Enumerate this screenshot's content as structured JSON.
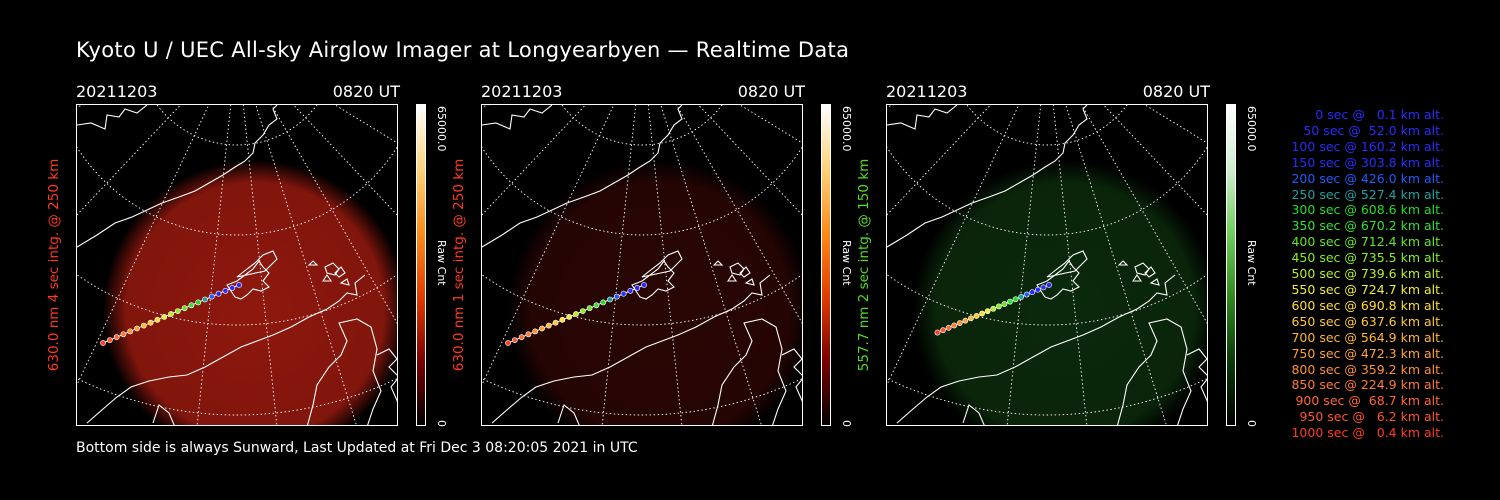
{
  "title": "Kyoto U / UEC All-sky Airglow Imager at Longyearbyen — Realtime Data",
  "footer": "Bottom side is always Sunward, Last Updated at Fri Dec  3 08:20:05 2021 in UTC",
  "panels": [
    {
      "date": "20211203",
      "time": "0820 UT",
      "ylabel": "630.0 nm 4 sec intg. @ 250 km",
      "label_color": "#ff3b1f",
      "colorbar_max": "65000.0",
      "colorbar_name": "Raw Cnt",
      "colorbar_min": "0",
      "colorbar_colors": [
        "#ffffff",
        "#ffd27a",
        "#ff8a1a",
        "#e23b00",
        "#7a0000",
        "#000000"
      ],
      "glow_color": "#a81c10",
      "glow_intensity": 0.85,
      "trajectory_scale": 1.0
    },
    {
      "date": "20211203",
      "time": "0820 UT",
      "ylabel": "630.0 nm 1 sec intg. @ 250 km",
      "label_color": "#ff3b1f",
      "colorbar_max": "65000.0",
      "colorbar_name": "Raw Cnt",
      "colorbar_min": "0",
      "colorbar_colors": [
        "#ffffff",
        "#ffd27a",
        "#ff8a1a",
        "#e23b00",
        "#7a0000",
        "#000000"
      ],
      "glow_color": "#3a0806",
      "glow_intensity": 0.7,
      "trajectory_scale": 1.0
    },
    {
      "date": "20211203",
      "time": "0820 UT",
      "ylabel": "557.7 nm 2 sec intg. @ 150 km",
      "label_color": "#55dd22",
      "colorbar_max": "65000.0",
      "colorbar_name": "Raw Cnt",
      "colorbar_min": "0",
      "colorbar_colors": [
        "#ffffff",
        "#cfeecf",
        "#6fcf5a",
        "#2f8a1e",
        "#0b3a08",
        "#000000"
      ],
      "glow_color": "#0f3a10",
      "glow_intensity": 0.7,
      "trajectory_scale": 0.82
    }
  ],
  "legend": [
    {
      "text": "0 sec @   0.1 km alt.",
      "color": "#2a2aff"
    },
    {
      "text": "50 sec @  52.0 km alt.",
      "color": "#2a2aff"
    },
    {
      "text": "100 sec @ 160.2 km alt.",
      "color": "#2a2aff"
    },
    {
      "text": "150 sec @ 303.8 km alt.",
      "color": "#2a2aff"
    },
    {
      "text": "200 sec @ 426.0 km alt.",
      "color": "#1e5cff"
    },
    {
      "text": "250 sec @ 527.4 km alt.",
      "color": "#1fa0a0"
    },
    {
      "text": "300 sec @ 608.6 km alt.",
      "color": "#22dd22"
    },
    {
      "text": "350 sec @ 670.2 km alt.",
      "color": "#33e033"
    },
    {
      "text": "400 sec @ 712.4 km alt.",
      "color": "#66e622"
    },
    {
      "text": "450 sec @ 735.5 km alt.",
      "color": "#88ee22"
    },
    {
      "text": "500 sec @ 739.6 km alt.",
      "color": "#bbee22"
    },
    {
      "text": "550 sec @ 724.7 km alt.",
      "color": "#eeee33"
    },
    {
      "text": "600 sec @ 690.8 km alt.",
      "color": "#ffdd33"
    },
    {
      "text": "650 sec @ 637.6 km alt.",
      "color": "#ffc833"
    },
    {
      "text": "700 sec @ 564.9 km alt.",
      "color": "#ffb833"
    },
    {
      "text": "750 sec @ 472.3 km alt.",
      "color": "#ffa333"
    },
    {
      "text": "800 sec @ 359.2 km alt.",
      "color": "#ff9033"
    },
    {
      "text": "850 sec @ 224.9 km alt.",
      "color": "#ff7a33"
    },
    {
      "text": "900 sec @  68.7 km alt.",
      "color": "#ff6633"
    },
    {
      "text": "950 sec @   6.2 km alt.",
      "color": "#ff5533"
    },
    {
      "text": "1000 sec @   0.4 km alt.",
      "color": "#ff3b1f"
    }
  ]
}
